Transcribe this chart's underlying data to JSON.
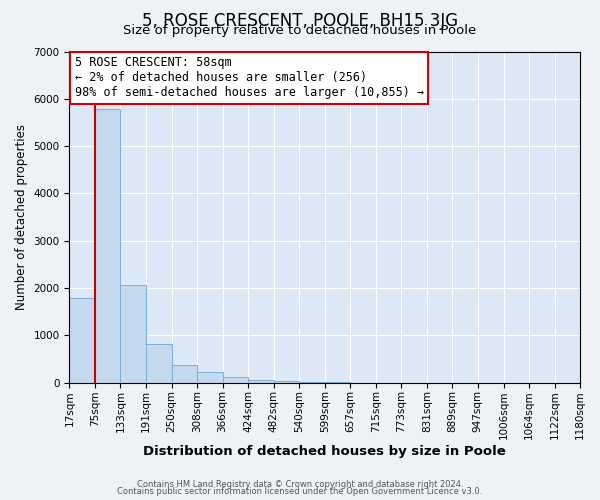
{
  "title": "5, ROSE CRESCENT, POOLE, BH15 3JG",
  "subtitle": "Size of property relative to detached houses in Poole",
  "xlabel": "Distribution of detached houses by size in Poole",
  "ylabel": "Number of detached properties",
  "bar_values": [
    1780,
    5780,
    2060,
    810,
    370,
    230,
    110,
    50,
    30,
    20,
    5,
    0,
    0,
    0,
    0,
    0,
    0,
    0,
    0,
    0
  ],
  "bin_edges": [
    17,
    75,
    133,
    191,
    250,
    308,
    366,
    424,
    482,
    540,
    599,
    657,
    715,
    773,
    831,
    889,
    947,
    1006,
    1064,
    1122,
    1180
  ],
  "bin_labels": [
    "17sqm",
    "75sqm",
    "133sqm",
    "191sqm",
    "250sqm",
    "308sqm",
    "366sqm",
    "424sqm",
    "482sqm",
    "540sqm",
    "599sqm",
    "657sqm",
    "715sqm",
    "773sqm",
    "831sqm",
    "889sqm",
    "947sqm",
    "1006sqm",
    "1064sqm",
    "1122sqm",
    "1180sqm"
  ],
  "bar_color": "#c5d9ee",
  "bar_edge_color": "#7bafd4",
  "property_line_color": "#cc0000",
  "annotation_line1": "5 ROSE CRESCENT: 58sqm",
  "annotation_line2": "← 2% of detached houses are smaller (256)",
  "annotation_line3": "98% of semi-detached houses are larger (10,855) →",
  "annotation_box_color": "#cc0000",
  "ylim": [
    0,
    7000
  ],
  "yticks": [
    0,
    1000,
    2000,
    3000,
    4000,
    5000,
    6000,
    7000
  ],
  "footer_line1": "Contains HM Land Registry data © Crown copyright and database right 2024.",
  "footer_line2": "Contains public sector information licensed under the Open Government Licence v3.0.",
  "background_color": "#eef2f7",
  "plot_bg_color": "#dce8f5",
  "grid_color": "#ffffff",
  "title_fontsize": 12,
  "subtitle_fontsize": 9.5,
  "xlabel_fontsize": 9.5,
  "ylabel_fontsize": 8.5,
  "tick_fontsize": 7.5,
  "annotation_fontsize": 8.5,
  "footer_fontsize": 6.0
}
